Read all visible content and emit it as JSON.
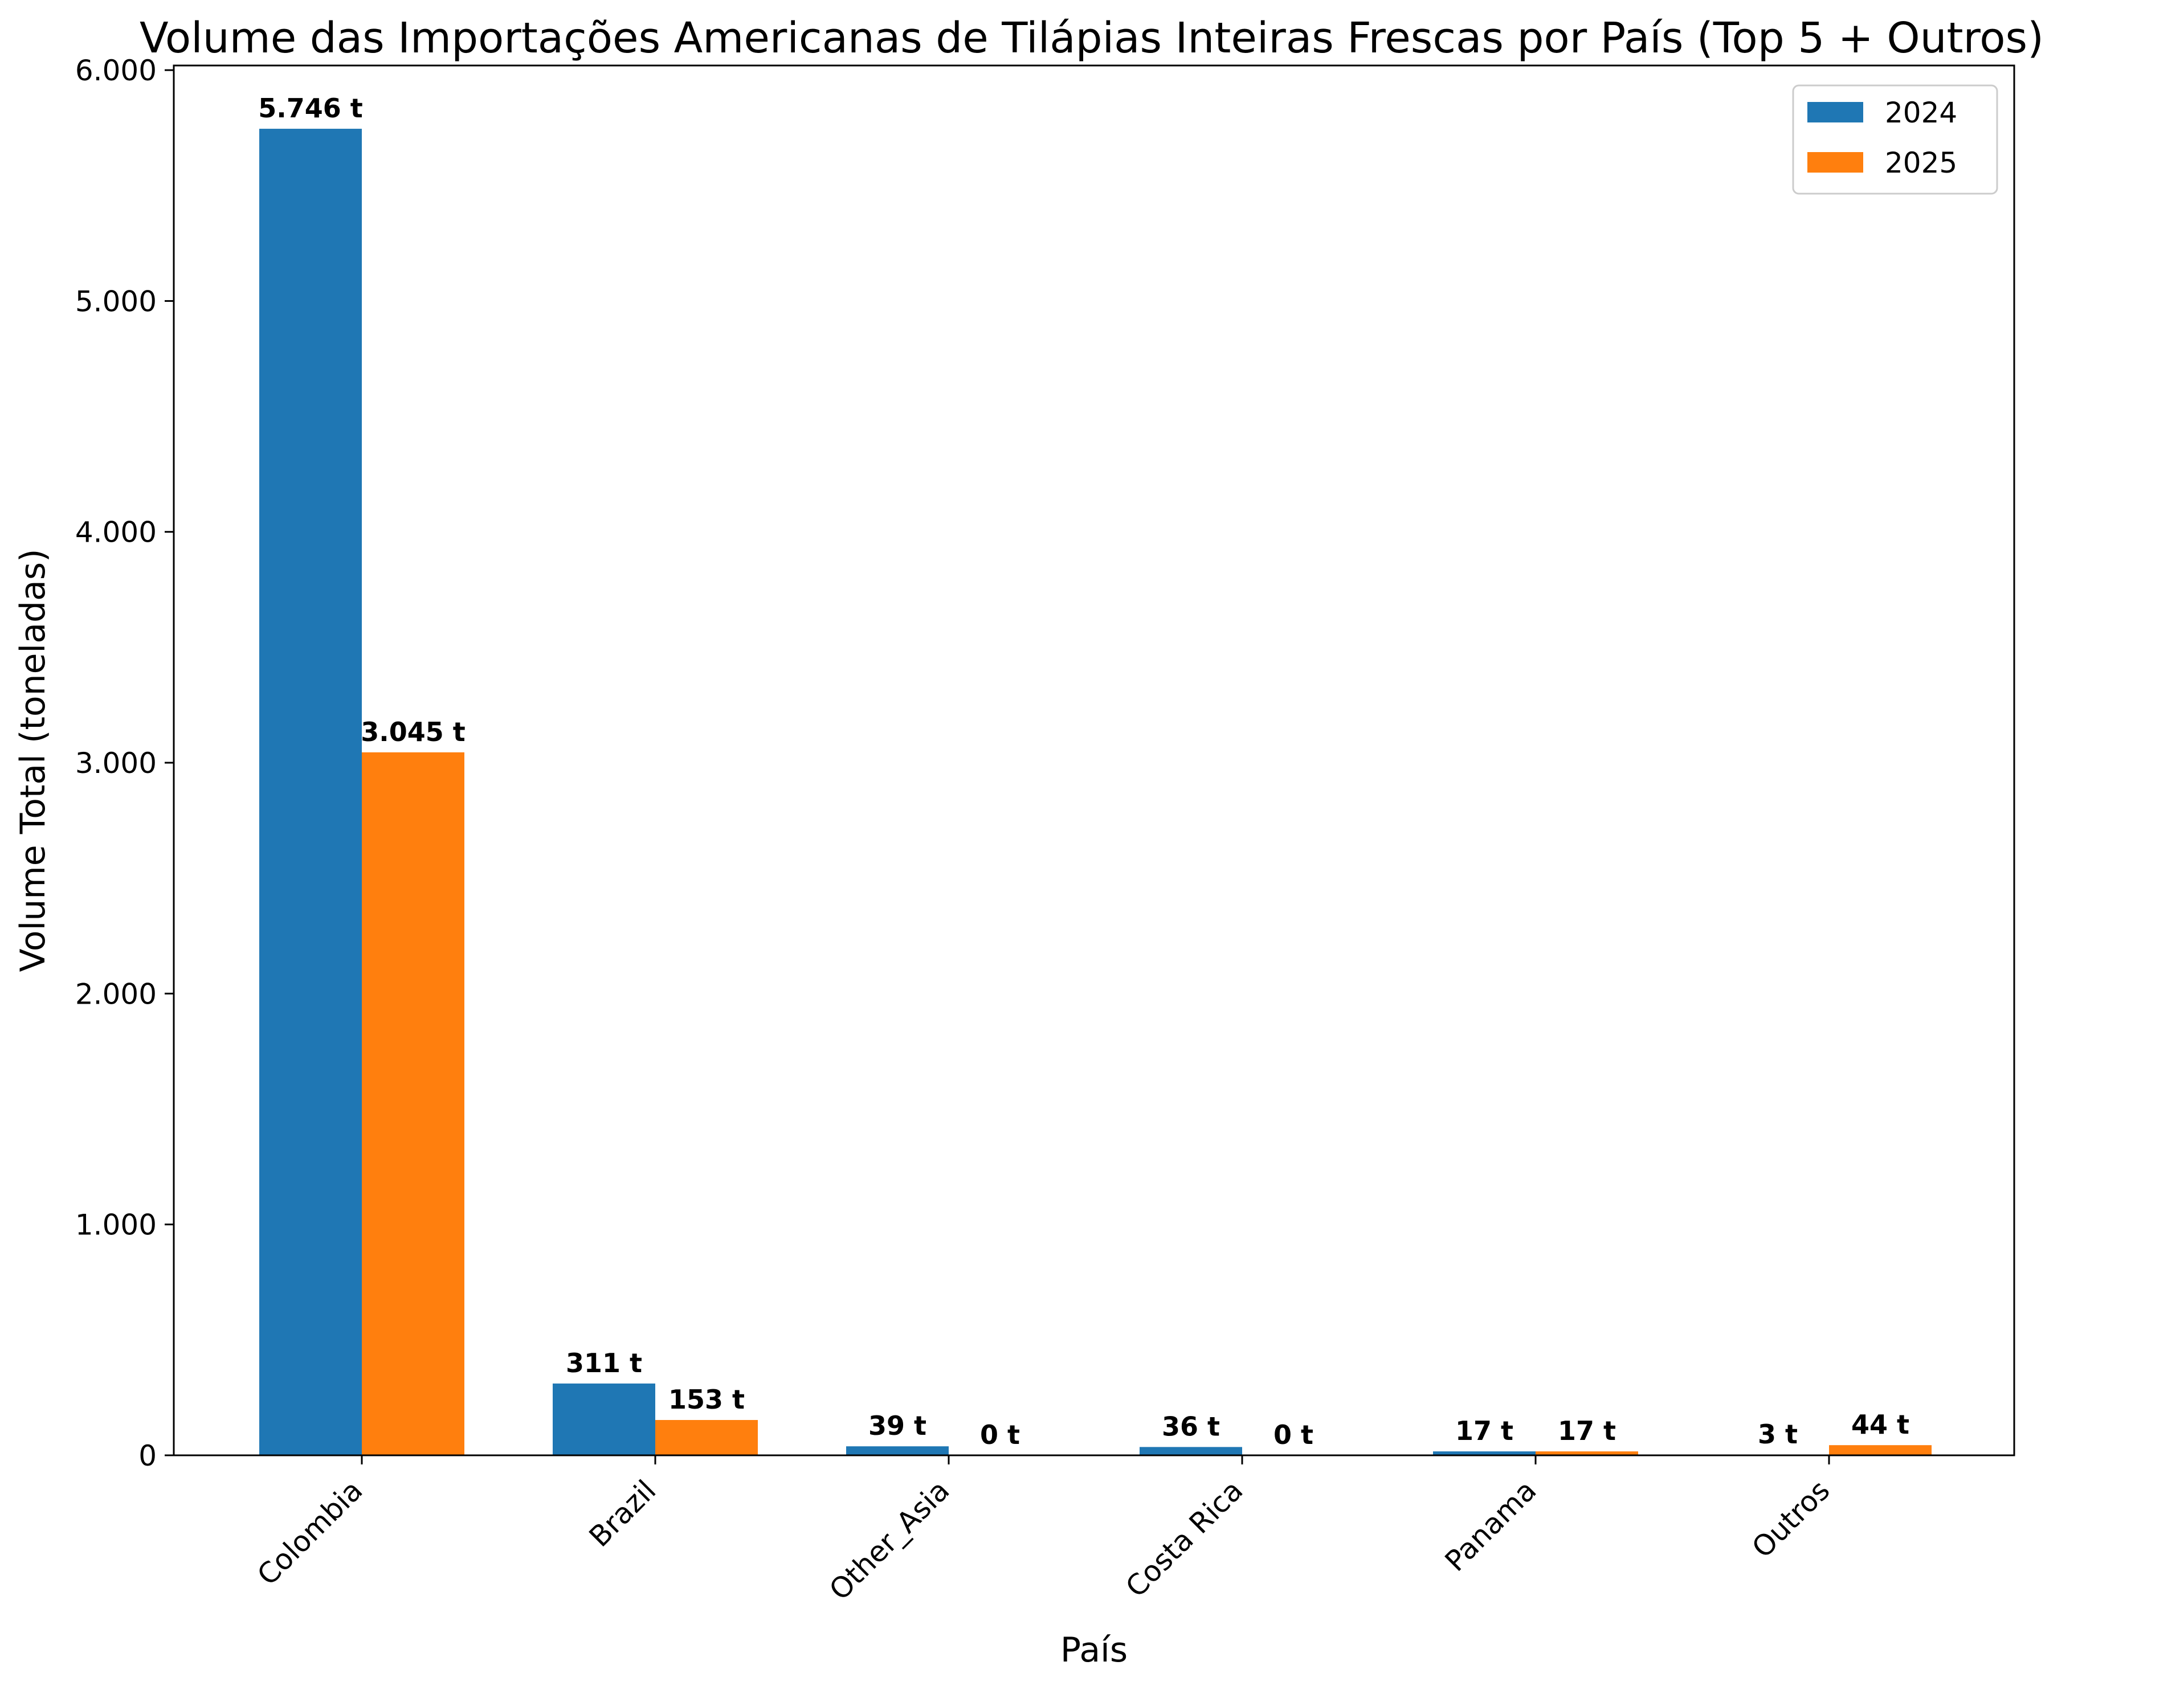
{
  "chart_data": {
    "type": "bar",
    "title": "Volume das Importações Americanas de Tilápias Inteiras Frescas por País (Top 5 + Outros)",
    "xlabel": "País",
    "ylabel": "Volume Total (toneladas)",
    "categories": [
      "Colombia",
      "Brazil",
      "Other_Asia",
      "Costa Rica",
      "Panama",
      "Outros"
    ],
    "series": [
      {
        "name": "2024",
        "color": "#1f77b4",
        "values": [
          5746,
          311,
          39,
          36,
          17,
          3
        ],
        "labels": [
          "5.746 t",
          "311 t",
          "39 t",
          "36 t",
          "17 t",
          "3 t"
        ]
      },
      {
        "name": "2025",
        "color": "#ff7f0e",
        "values": [
          3045,
          153,
          0,
          0,
          17,
          44
        ],
        "labels": [
          "3.045 t",
          "153 t",
          "0 t",
          "0 t",
          "17 t",
          "44 t"
        ]
      }
    ],
    "ylim": [
      0,
      6020
    ],
    "yticks": [
      0,
      1000,
      2000,
      3000,
      4000,
      5000,
      6000
    ],
    "ytick_labels": [
      "0",
      "1.000",
      "2.000",
      "3.000",
      "4.000",
      "5.000",
      "6.000"
    ],
    "grid": false,
    "legend_position": "top-right"
  }
}
